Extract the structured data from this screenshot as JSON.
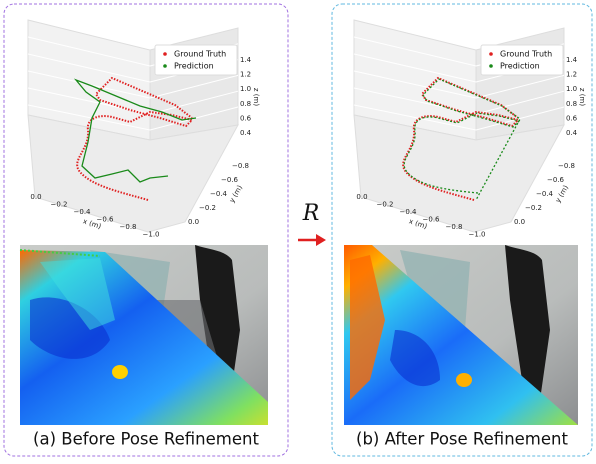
{
  "panels": [
    {
      "caption": "(a) Before Pose Refinement",
      "plot": {
        "legend": [
          "Ground Truth",
          "Prediction"
        ],
        "xlabel": "x (m)",
        "ylabel": "y (m)",
        "zlabel": "z (m)",
        "xticks": [
          "0.0",
          "−0.2",
          "−0.4",
          "−0.6",
          "−0.8",
          "−1.0"
        ],
        "yticks": [
          "0.0",
          "−0.2",
          "−0.4",
          "−0.6",
          "−0.8"
        ],
        "zticks": [
          "0.4",
          "0.6",
          "0.8",
          "1.0",
          "1.2",
          "1.4"
        ]
      }
    },
    {
      "caption": "(b) After Pose Refinement",
      "plot": {
        "legend": [
          "Ground Truth",
          "Prediction"
        ],
        "xlabel": "x (m)",
        "ylabel": "y (m)",
        "zlabel": "z (m)",
        "xticks": [
          "0.0",
          "−0.2",
          "−0.4",
          "−0.6",
          "−0.8",
          "−1.0"
        ],
        "yticks": [
          "0.0",
          "−0.2",
          "−0.4",
          "−0.6",
          "−0.8"
        ],
        "zticks": [
          "0.4",
          "0.6",
          "0.8",
          "1.0",
          "1.2",
          "1.4"
        ]
      }
    }
  ],
  "operator": "R"
}
